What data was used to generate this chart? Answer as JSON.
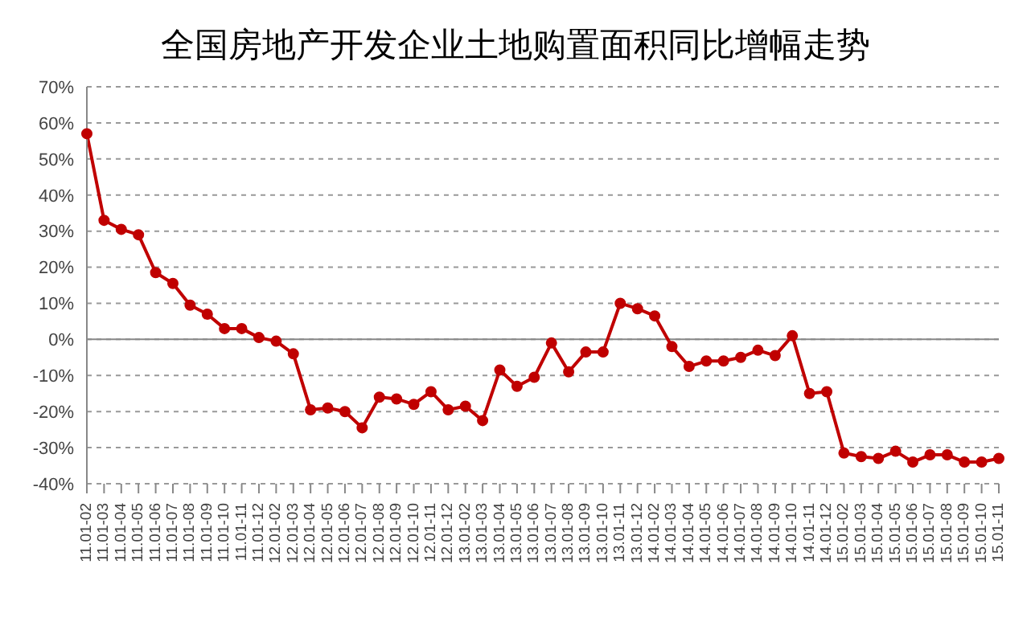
{
  "chart_data": {
    "type": "line",
    "title": "全国房地产开发企业土地购置面积同比增幅走势",
    "categories": [
      "11.01-02",
      "11.01-03",
      "11.01-04",
      "11.01-05",
      "11.01-06",
      "11.01-07",
      "11.01-08",
      "11.01-09",
      "11.01-10",
      "11.01-11",
      "11.01-12",
      "12.01-02",
      "12.01-03",
      "12.01-04",
      "12.01-05",
      "12.01-06",
      "12.01-07",
      "12.01-08",
      "12.01-09",
      "12.01-10",
      "12.01-11",
      "12.01-12",
      "13.01-02",
      "13.01-03",
      "13.01-04",
      "13.01-05",
      "13.01-06",
      "13.01-07",
      "13.01-08",
      "13.01-09",
      "13.01-10",
      "13.01-11",
      "13.01-12",
      "14.01-02",
      "14.01-03",
      "14.01-04",
      "14.01-05",
      "14.01-06",
      "14.01-07",
      "14.01-08",
      "14.01-09",
      "14.01-10",
      "14.01-11",
      "14.01-12",
      "15.01-02",
      "15.01-03",
      "15.01-04",
      "15.01-05",
      "15.01-06",
      "15.01-07",
      "15.01-08",
      "15.01-09",
      "15.01-10",
      "15.01-11"
    ],
    "series": [
      {
        "color": "#c00000",
        "values": [
          57,
          33,
          30.5,
          29,
          18.5,
          15.5,
          9.5,
          7,
          3,
          3,
          0.5,
          -0.5,
          -4,
          -19.5,
          -19,
          -20,
          -24.5,
          -16,
          -16.5,
          -18,
          -14.5,
          -19.5,
          -18.5,
          -22.5,
          -8.5,
          -13,
          -10.5,
          -1,
          -9,
          -3.5,
          -3.5,
          10,
          8.5,
          6.5,
          -2,
          -7.5,
          -6,
          -6,
          -5,
          -3,
          -4.5,
          1,
          -15,
          -14.5,
          -31.5,
          -32.5,
          -33,
          -31,
          -34,
          -32,
          -32,
          -34,
          -34,
          -33
        ]
      }
    ],
    "ylim": [
      -40,
      70
    ],
    "yticks": [
      {
        "value": -40,
        "label": "-40%"
      },
      {
        "value": -30,
        "label": "-30%"
      },
      {
        "value": -20,
        "label": "-20%"
      },
      {
        "value": -10,
        "label": "-10%"
      },
      {
        "value": 0,
        "label": "0%"
      },
      {
        "value": 10,
        "label": "10%"
      },
      {
        "value": 20,
        "label": "20%"
      },
      {
        "value": 30,
        "label": "30%"
      },
      {
        "value": 40,
        "label": "40%"
      },
      {
        "value": 50,
        "label": "50%"
      },
      {
        "value": 60,
        "label": "60%"
      },
      {
        "value": 70,
        "label": "70%"
      }
    ],
    "grid": "y",
    "marker": "circle",
    "line_style": "solid"
  }
}
